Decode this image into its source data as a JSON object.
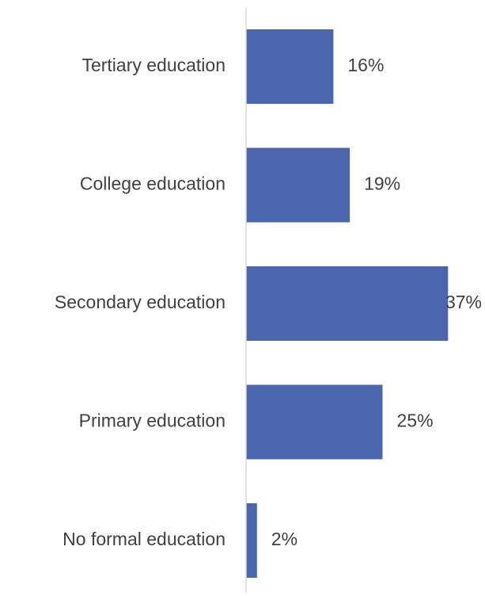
{
  "chart_data": {
    "type": "bar",
    "orientation": "horizontal",
    "categories": [
      "Tertiary education",
      "College education",
      "Secondary education",
      "Primary education",
      "No formal education"
    ],
    "values": [
      16,
      19,
      37,
      25,
      2
    ],
    "data_labels": [
      "16%",
      "19%",
      "37%",
      "25%",
      "2%"
    ],
    "unit": "%",
    "xlim": [
      0,
      40
    ],
    "grid": false,
    "legend": "none",
    "colors": {
      "bar": "#4a67ae",
      "axis": "#d9d9d9",
      "text": "#404040"
    }
  }
}
